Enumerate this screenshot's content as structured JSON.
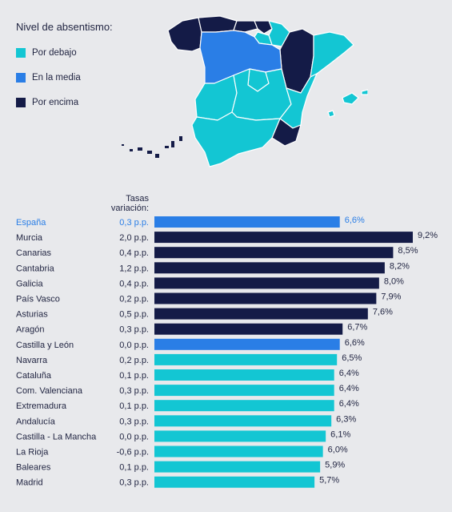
{
  "legend": {
    "title": "Nivel de absentismo:",
    "items": [
      {
        "label": "Por debajo",
        "color": "#13c6d3"
      },
      {
        "label": "En la media",
        "color": "#2a7ee6"
      },
      {
        "label": "Por encima",
        "color": "#141b47"
      }
    ]
  },
  "column_header": {
    "line1": "Tasas",
    "line2": "variación:"
  },
  "colors": {
    "below": "#13c6d3",
    "average": "#2a7ee6",
    "above": "#141b47",
    "highlight_text": "#2a7ee6",
    "text": "#1f2340"
  },
  "chart_data": {
    "type": "bar",
    "orientation": "horizontal",
    "categories": [
      "España",
      "Murcia",
      "Canarias",
      "Cantabria",
      "Galicia",
      "País Vasco",
      "Asturias",
      "Aragón",
      "Castilla y León",
      "Navarra",
      "Cataluña",
      "Com. Valenciana",
      "Extremadura",
      "Andalucía",
      "Castilla - La Mancha",
      "La Rioja",
      "Baleares",
      "Madrid"
    ],
    "values": [
      6.6,
      9.2,
      8.5,
      8.2,
      8.0,
      7.9,
      7.6,
      6.7,
      6.6,
      6.5,
      6.4,
      6.4,
      6.4,
      6.3,
      6.1,
      6.0,
      5.9,
      5.7
    ],
    "value_labels": [
      "6,6%",
      "9,2%",
      "8,5%",
      "8,2%",
      "8,0%",
      "7,9%",
      "7,6%",
      "6,7%",
      "6,6%",
      "6,5%",
      "6,4%",
      "6,4%",
      "6,4%",
      "6,3%",
      "6,1%",
      "6,0%",
      "5,9%",
      "5,7%"
    ],
    "variations": [
      "0,3 p.p.",
      "2,0 p.p.",
      "0,4 p.p.",
      "1,2 p.p.",
      "0,4 p.p.",
      "0,2 p.p.",
      "0,5 p.p.",
      "0,3 p.p.",
      "0,0 p.p.",
      "0,2 p.p.",
      "0,1 p.p.",
      "0,3 p.p.",
      "0,1 p.p.",
      "0,3 p.p.",
      "0,0 p.p.",
      "-0,6 p.p.",
      "0,1 p.p.",
      "0,3 p.p."
    ],
    "levels": [
      "average",
      "above",
      "above",
      "above",
      "above",
      "above",
      "above",
      "above",
      "average",
      "below",
      "below",
      "below",
      "below",
      "below",
      "below",
      "below",
      "below",
      "below"
    ],
    "highlight": [
      true,
      false,
      false,
      false,
      false,
      false,
      false,
      false,
      false,
      false,
      false,
      false,
      false,
      false,
      false,
      false,
      false,
      false
    ],
    "xlim": [
      0,
      9.2
    ]
  }
}
